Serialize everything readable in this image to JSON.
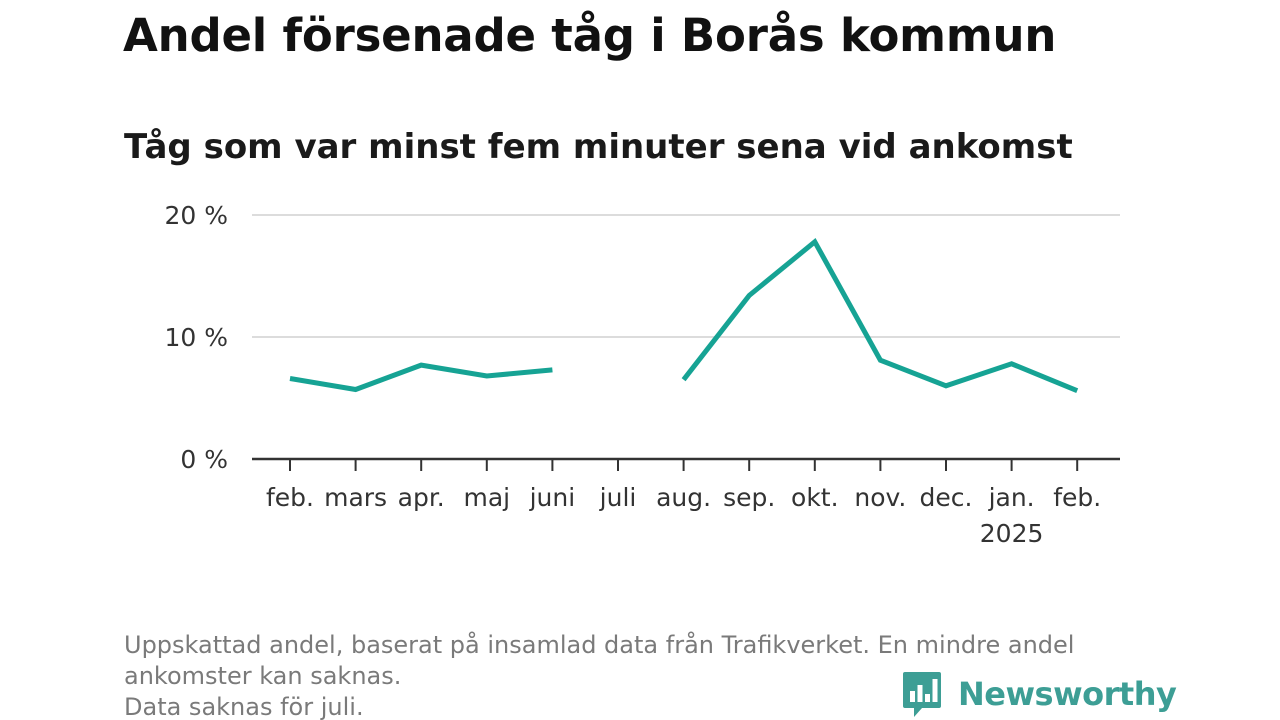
{
  "title": "Andel försenade tåg i Borås kommun",
  "subtitle": "Tåg som var minst fem minuter sena vid ankomst",
  "footnote": {
    "line1": "Uppskattad andel, baserat på insamlad data från Trafikverket. En mindre andel",
    "line2": "ankomster kan saknas.",
    "line3": "Data saknas för juli."
  },
  "brand": {
    "name": "Newsworthy",
    "icon": "newsworthy-logo-icon"
  },
  "colors": {
    "line": "#16a394",
    "grid": "#dcdcdc",
    "axis": "#333333",
    "brand": "#3d9e95"
  },
  "chart_data": {
    "type": "line",
    "title": "Andel försenade tåg i Borås kommun",
    "subtitle": "Tåg som var minst fem minuter sena vid ankomst",
    "categories": [
      "feb.",
      "mars",
      "apr.",
      "maj",
      "juni",
      "juli",
      "aug.",
      "sep.",
      "okt.",
      "nov.",
      "dec.",
      "jan.",
      "feb."
    ],
    "category_sublabels": [
      "",
      "",
      "",
      "",
      "",
      "",
      "",
      "",
      "",
      "",
      "",
      "2025",
      ""
    ],
    "series": [
      {
        "values": [
          6.6,
          5.7,
          7.7,
          6.8,
          7.3,
          null,
          6.5,
          13.4,
          17.8,
          8.1,
          6.0,
          7.8,
          5.6
        ]
      }
    ],
    "yticks": [
      0,
      10,
      20
    ],
    "ytick_labels": [
      "0 %",
      "10 %",
      "20 %"
    ],
    "ylim": [
      0,
      20
    ],
    "unit": "%",
    "grid": true,
    "legend": "none"
  }
}
